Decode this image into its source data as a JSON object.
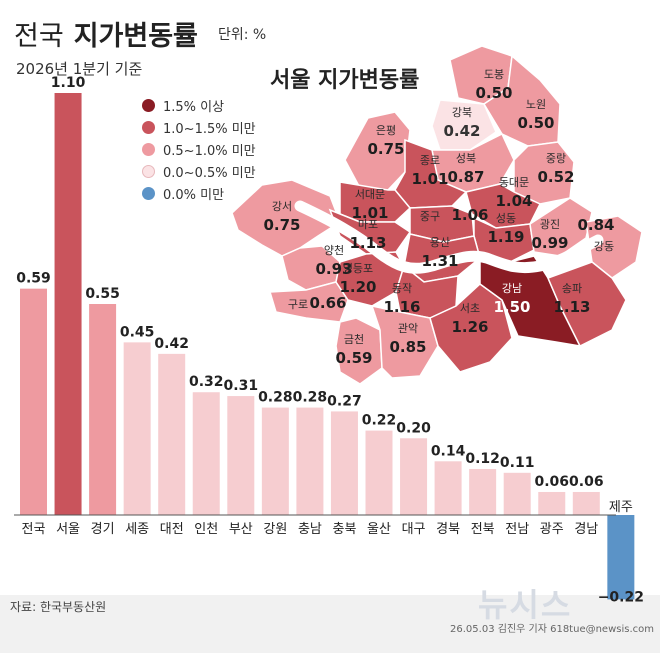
{
  "header": {
    "title_prefix": "전국",
    "title_main": "지가변동률",
    "unit": "단위: %",
    "subtitle": "2026년 1분기 기준"
  },
  "seoul_title": "서울 지가변동률",
  "legend": [
    {
      "label": "1.5% 이상",
      "color": "#8a1c24"
    },
    {
      "label": "1.0~1.5% 미만",
      "color": "#c9545c"
    },
    {
      "label": "0.5~1.0% 미만",
      "color": "#ee9aa0"
    },
    {
      "label": "0.0~0.5% 미만",
      "color": "#fbe3e5"
    },
    {
      "label": "0.0% 미만",
      "color": "#5b93c7"
    }
  ],
  "colors": {
    "seoul_bar": "#c9545c",
    "high_bar": "#ee9aa0",
    "low_bar": "#f6cdd0",
    "negative_bar": "#5b93c7",
    "river": "#ffffff"
  },
  "chart_data": [
    {
      "type": "bar",
      "categories": [
        "전국",
        "서울",
        "경기",
        "세종",
        "대전",
        "인천",
        "부산",
        "강원",
        "충남",
        "충북",
        "울산",
        "대구",
        "경북",
        "전북",
        "전남",
        "광주",
        "경남",
        "제주"
      ],
      "values": [
        0.59,
        1.1,
        0.55,
        0.45,
        0.42,
        0.32,
        0.31,
        0.28,
        0.28,
        0.27,
        0.22,
        0.2,
        0.14,
        0.12,
        0.11,
        0.06,
        0.06,
        -0.22
      ],
      "value_labels": [
        "0.59",
        "1.10",
        "0.55",
        "0.45",
        "0.42",
        "0.32",
        "0.31",
        "0.28",
        "0.28",
        "0.27",
        "0.22",
        "0.20",
        "0.14",
        "0.12",
        "0.11",
        "0.06",
        "0.06",
        "−0.22"
      ],
      "ylim": [
        -0.22,
        1.1
      ]
    },
    {
      "type": "map",
      "districts": [
        {
          "name": "도봉",
          "value": "0.50"
        },
        {
          "name": "강북",
          "value": "0.42"
        },
        {
          "name": "노원",
          "value": "0.50"
        },
        {
          "name": "은평",
          "value": "0.75"
        },
        {
          "name": "성북",
          "value": "0.87"
        },
        {
          "name": "중랑",
          "value": "0.52"
        },
        {
          "name": "종로",
          "value": "1.01"
        },
        {
          "name": "동대문",
          "value": "1.04"
        },
        {
          "name": "서대문",
          "value": "1.01"
        },
        {
          "name": "강서",
          "value": "0.75"
        },
        {
          "name": "마포",
          "value": "1.13"
        },
        {
          "name": "중구",
          "value": "1.06"
        },
        {
          "name": "성동",
          "value": "1.19"
        },
        {
          "name": "광진",
          "value": "0.99"
        },
        {
          "name": "강동",
          "value": "0.84"
        },
        {
          "name": "양천",
          "value": "0.93"
        },
        {
          "name": "용산",
          "value": "1.31"
        },
        {
          "name": "영등포",
          "value": "1.20"
        },
        {
          "name": "구로",
          "value": "0.66"
        },
        {
          "name": "동작",
          "value": "1.16"
        },
        {
          "name": "강남",
          "value": "1.50"
        },
        {
          "name": "송파",
          "value": "1.13"
        },
        {
          "name": "서초",
          "value": "1.26"
        },
        {
          "name": "금천",
          "value": "0.59"
        },
        {
          "name": "관악",
          "value": "0.85"
        }
      ]
    }
  ],
  "source": "자료: 한국부동산원",
  "credit": "26.05.03 김진우 기자 618tue@newsis.com",
  "watermark": "뉴시스"
}
